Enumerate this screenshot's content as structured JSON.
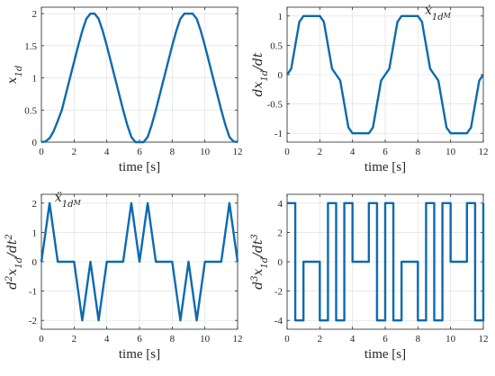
{
  "chart_data": [
    {
      "id": "x1d",
      "type": "line",
      "title": "",
      "xlabel": "time [s]",
      "ylabel": "x_1d",
      "ylabel_parts": [
        {
          "t": "x",
          "s": "normal"
        },
        {
          "t": "1d",
          "s": "sub"
        }
      ],
      "xlim": [
        0,
        12
      ],
      "ylim": [
        0,
        2.1
      ],
      "xticks": [
        0,
        2,
        4,
        6,
        8,
        10,
        12
      ],
      "xtick_labels": [
        "0",
        "2",
        "4",
        "6",
        "8",
        "10",
        "12"
      ],
      "yticks": [
        0,
        0.5,
        1,
        1.5,
        2
      ],
      "ytick_labels": [
        "0",
        "0.5",
        "1",
        "1.5",
        "2"
      ],
      "grid": true,
      "color": "#0c6ab0",
      "x": [
        0,
        0.25,
        0.5,
        0.75,
        1,
        1.25,
        1.5,
        1.75,
        2,
        2.25,
        2.5,
        2.75,
        3,
        3.25,
        3.5,
        3.75,
        4,
        4.25,
        4.5,
        4.75,
        5,
        5.25,
        5.5,
        5.75,
        6,
        6.25,
        6.5,
        6.75,
        7,
        7.25,
        7.5,
        7.75,
        8,
        8.25,
        8.5,
        8.75,
        9,
        9.25,
        9.5,
        9.75,
        10,
        10.25,
        10.5,
        10.75,
        11,
        11.25,
        11.5,
        11.75,
        12
      ],
      "y": [
        0,
        0.01,
        0.06,
        0.17,
        0.33,
        0.5,
        0.75,
        1.0,
        1.25,
        1.5,
        1.73,
        1.92,
        2.0,
        2.0,
        1.92,
        1.73,
        1.5,
        1.25,
        1.0,
        0.75,
        0.5,
        0.27,
        0.08,
        0.0,
        0.0,
        0.0,
        0.08,
        0.27,
        0.5,
        0.75,
        1.0,
        1.25,
        1.5,
        1.73,
        1.92,
        2.0,
        2.0,
        2.0,
        1.92,
        1.73,
        1.5,
        1.25,
        1.0,
        0.75,
        0.5,
        0.27,
        0.08,
        0.01,
        0.0
      ],
      "annotation": null
    },
    {
      "id": "dx1d",
      "type": "line",
      "title": "",
      "xlabel": "time [s]",
      "ylabel": "dx_1d/dt",
      "ylabel_parts": [
        {
          "t": "dx",
          "s": "normal"
        },
        {
          "t": "1d",
          "s": "sub"
        },
        {
          "t": "/dt",
          "s": "normal"
        }
      ],
      "xlim": [
        0,
        12
      ],
      "ylim": [
        -1.15,
        1.15
      ],
      "xticks": [
        0,
        2,
        4,
        6,
        8,
        10,
        12
      ],
      "xtick_labels": [
        "0",
        "2",
        "4",
        "6",
        "8",
        "10",
        "12"
      ],
      "yticks": [
        -1,
        -0.5,
        0,
        0.5,
        1
      ],
      "ytick_labels": [
        "-1",
        "-0.5",
        "0",
        "0.5",
        "1"
      ],
      "grid": true,
      "color": "#0c6ab0",
      "x": [
        0,
        0.25,
        0.5,
        0.75,
        1,
        2,
        2.25,
        2.5,
        2.75,
        3,
        3.25,
        3.5,
        3.75,
        4,
        5,
        5.25,
        5.5,
        5.75,
        6,
        6.25,
        6.5,
        6.75,
        7,
        8,
        8.25,
        8.5,
        8.75,
        9,
        9.25,
        9.5,
        9.75,
        10,
        11,
        11.25,
        11.5,
        11.75,
        12
      ],
      "y": [
        0,
        0.1,
        0.5,
        0.9,
        1,
        1,
        0.9,
        0.5,
        0.1,
        0,
        -0.1,
        -0.5,
        -0.9,
        -1,
        -1,
        -0.9,
        -0.5,
        -0.1,
        0,
        0.1,
        0.5,
        0.9,
        1,
        1,
        0.9,
        0.5,
        0.1,
        0,
        -0.1,
        -0.5,
        -0.9,
        -1,
        -1,
        -0.9,
        -0.5,
        -0.1,
        0
      ],
      "annotation": {
        "x": 8.2,
        "y": 1.0,
        "parts": [
          {
            "t": "ẋ",
            "s": "normal"
          },
          {
            "t": "1d",
            "s": "sub"
          },
          {
            "t": "M",
            "s": "subsub"
          }
        ]
      }
    },
    {
      "id": "ddx1d",
      "type": "line",
      "title": "",
      "xlabel": "time [s]",
      "ylabel": "d²x_1d/dt²",
      "ylabel_parts": [
        {
          "t": "d",
          "s": "normal"
        },
        {
          "t": "2",
          "s": "sup"
        },
        {
          "t": "x",
          "s": "normal"
        },
        {
          "t": "1d",
          "s": "sub"
        },
        {
          "t": "/dt",
          "s": "normal"
        },
        {
          "t": "2",
          "s": "sup"
        }
      ],
      "xlim": [
        0,
        12
      ],
      "ylim": [
        -2.3,
        2.3
      ],
      "xticks": [
        0,
        2,
        4,
        6,
        8,
        10,
        12
      ],
      "xtick_labels": [
        "0",
        "2",
        "4",
        "6",
        "8",
        "10",
        "12"
      ],
      "yticks": [
        -2,
        -1,
        0,
        1,
        2
      ],
      "ytick_labels": [
        "-2",
        "-1",
        "0",
        "1",
        "2"
      ],
      "grid": true,
      "color": "#0c6ab0",
      "x": [
        0,
        0.5,
        1,
        2,
        2.5,
        3,
        3.5,
        4,
        5,
        5.5,
        6,
        6.5,
        7,
        8,
        8.5,
        9,
        9.5,
        10,
        11,
        11.5,
        12
      ],
      "y": [
        0,
        2,
        0,
        0,
        -2,
        0,
        -2,
        0,
        0,
        2,
        0,
        2,
        0,
        0,
        -2,
        0,
        -2,
        0,
        0,
        2,
        0
      ],
      "annotation": {
        "x": 0.6,
        "y": 2.0,
        "parts": [
          {
            "t": "ẍ",
            "s": "normal"
          },
          {
            "t": "1d",
            "s": "sub"
          },
          {
            "t": "M",
            "s": "subsub"
          }
        ]
      }
    },
    {
      "id": "dddx1d",
      "type": "line",
      "title": "",
      "xlabel": "time [s]",
      "ylabel": "d³x_1d/dt³",
      "ylabel_parts": [
        {
          "t": "d",
          "s": "normal"
        },
        {
          "t": "3",
          "s": "sup"
        },
        {
          "t": "x",
          "s": "normal"
        },
        {
          "t": "1d",
          "s": "sub"
        },
        {
          "t": "/dt",
          "s": "normal"
        },
        {
          "t": "3",
          "s": "sup"
        }
      ],
      "xlim": [
        0,
        12
      ],
      "ylim": [
        -4.6,
        4.6
      ],
      "xticks": [
        0,
        2,
        4,
        6,
        8,
        10,
        12
      ],
      "xtick_labels": [
        "0",
        "2",
        "4",
        "6",
        "8",
        "10",
        "12"
      ],
      "yticks": [
        -4,
        -2,
        0,
        2,
        4
      ],
      "ytick_labels": [
        "-4",
        "-2",
        "0",
        "2",
        "4"
      ],
      "grid": true,
      "color": "#0c6ab0",
      "x": [
        0,
        0.5,
        0.5,
        1,
        1,
        2,
        2,
        2.5,
        2.5,
        3,
        3,
        3.5,
        3.5,
        4,
        4,
        5,
        5,
        5.5,
        5.5,
        6,
        6,
        6.5,
        6.5,
        7,
        7,
        8,
        8,
        8.5,
        8.5,
        9,
        9,
        9.5,
        9.5,
        10,
        10,
        11,
        11,
        11.5,
        11.5,
        12,
        12
      ],
      "y": [
        4,
        4,
        -4,
        -4,
        0,
        0,
        -4,
        -4,
        4,
        4,
        -4,
        -4,
        4,
        4,
        0,
        0,
        4,
        4,
        -4,
        -4,
        4,
        4,
        -4,
        -4,
        0,
        0,
        -4,
        -4,
        4,
        4,
        -4,
        -4,
        4,
        4,
        0,
        0,
        4,
        4,
        -4,
        -4,
        4
      ],
      "annotation": null
    }
  ]
}
